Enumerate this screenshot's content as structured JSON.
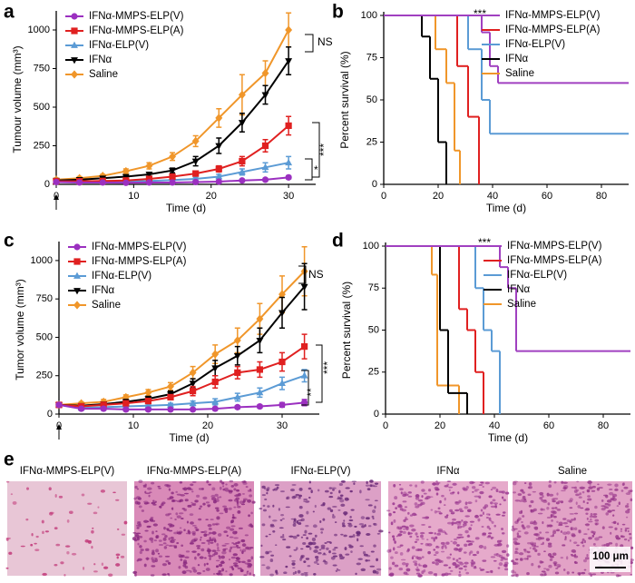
{
  "chart_data": [
    {
      "type": "line",
      "panel_label": "a",
      "x_label": "Time (d)",
      "y_label": "Tumour volume (mm³)",
      "xlim": [
        0,
        33.5
      ],
      "xticks": [
        0,
        10,
        20,
        30
      ],
      "ylim": [
        0,
        1100
      ],
      "yticks": [
        0,
        250,
        500,
        750,
        1000
      ],
      "x": [
        0,
        3,
        6,
        9,
        12,
        15,
        18,
        21,
        24,
        27,
        30
      ],
      "series": [
        {
          "name": "IFNα-MMPS-ELP(V)",
          "color": "#9b30c0",
          "marker": "circle",
          "values": [
            15,
            12,
            12,
            10,
            12,
            12,
            15,
            18,
            25,
            30,
            45
          ],
          "errors": [
            5,
            5,
            5,
            5,
            5,
            5,
            5,
            5,
            8,
            8,
            10
          ]
        },
        {
          "name": "IFNα-MMPS-ELP(A)",
          "color": "#e02020",
          "marker": "square",
          "values": [
            20,
            20,
            22,
            25,
            35,
            50,
            70,
            100,
            150,
            250,
            380
          ],
          "errors": [
            5,
            5,
            5,
            5,
            8,
            10,
            15,
            20,
            30,
            40,
            60
          ]
        },
        {
          "name": "IFNα-ELP(V)",
          "color": "#5b9bd5",
          "marker": "triangle",
          "values": [
            20,
            18,
            18,
            20,
            22,
            28,
            35,
            50,
            80,
            110,
            140
          ],
          "errors": [
            5,
            5,
            5,
            5,
            5,
            8,
            10,
            15,
            20,
            30,
            40
          ]
        },
        {
          "name": "IFNα",
          "color": "#000000",
          "marker": "triangle-down",
          "values": [
            25,
            30,
            40,
            50,
            65,
            90,
            150,
            250,
            400,
            580,
            800
          ],
          "errors": [
            5,
            5,
            8,
            10,
            12,
            15,
            30,
            50,
            60,
            60,
            90
          ]
        },
        {
          "name": "Saline",
          "color": "#f0962a",
          "marker": "diamond",
          "values": [
            30,
            40,
            55,
            85,
            120,
            180,
            280,
            430,
            580,
            720,
            1000
          ],
          "errors": [
            10,
            10,
            10,
            15,
            20,
            25,
            35,
            60,
            130,
            80,
            110
          ]
        }
      ],
      "annotations": [
        "NS",
        "***",
        "*"
      ]
    },
    {
      "type": "survival",
      "panel_label": "b",
      "x_label": "Time (d)",
      "y_label": "Percent survival (%)",
      "xlim": [
        0,
        90
      ],
      "xticks": [
        0,
        20,
        40,
        60,
        80
      ],
      "ylim": [
        0,
        100
      ],
      "yticks": [
        0,
        25,
        50,
        75,
        100
      ],
      "series": [
        {
          "name": "IFNα-MMPS-ELP(V)",
          "color": "#a040c0",
          "x": [
            0,
            36,
            39,
            42
          ],
          "values": [
            100,
            90,
            70,
            60
          ]
        },
        {
          "name": "IFNα-MMPS-ELP(A)",
          "color": "#e02020",
          "x": [
            0,
            27,
            31,
            35
          ],
          "values": [
            100,
            70,
            40,
            0
          ]
        },
        {
          "name": "IFNα-ELP(V)",
          "color": "#5b9bd5",
          "x": [
            0,
            31,
            36,
            39
          ],
          "values": [
            100,
            80,
            50,
            30
          ]
        },
        {
          "name": "IFNα",
          "color": "#000000",
          "x": [
            0,
            14,
            17,
            20,
            23
          ],
          "values": [
            100,
            87.5,
            62.5,
            25,
            0
          ]
        },
        {
          "name": "Saline",
          "color": "#f0962a",
          "x": [
            0,
            19,
            23,
            26,
            28
          ],
          "values": [
            100,
            80,
            60,
            20,
            0
          ]
        }
      ],
      "annotations": [
        "***"
      ]
    },
    {
      "type": "line",
      "panel_label": "c",
      "x_label": "Time (d)",
      "y_label": "Tumor volume (mm³)",
      "xlim": [
        0,
        35
      ],
      "xticks": [
        0,
        10,
        20,
        30
      ],
      "ylim": [
        0,
        1100
      ],
      "yticks": [
        0,
        250,
        500,
        750,
        1000
      ],
      "x": [
        0,
        3,
        6,
        9,
        12,
        15,
        18,
        21,
        24,
        27,
        30,
        33
      ],
      "series": [
        {
          "name": "IFNα-MMPS-ELP(V)",
          "color": "#9b30c0",
          "marker": "circle",
          "values": [
            60,
            35,
            35,
            30,
            30,
            30,
            30,
            35,
            45,
            50,
            60,
            75
          ],
          "errors": [
            10,
            10,
            10,
            10,
            5,
            5,
            5,
            10,
            10,
            10,
            15,
            20
          ]
        },
        {
          "name": "IFNα-MMPS-ELP(A)",
          "color": "#e02020",
          "marker": "square",
          "values": [
            60,
            50,
            60,
            70,
            85,
            110,
            150,
            210,
            270,
            290,
            340,
            440
          ],
          "errors": [
            10,
            10,
            10,
            10,
            15,
            15,
            30,
            40,
            40,
            50,
            60,
            80
          ]
        },
        {
          "name": "IFNα-ELP(V)",
          "color": "#5b9bd5",
          "marker": "triangle",
          "values": [
            60,
            40,
            45,
            50,
            55,
            60,
            70,
            80,
            110,
            140,
            200,
            250
          ],
          "errors": [
            10,
            10,
            10,
            10,
            10,
            10,
            15,
            20,
            25,
            30,
            40,
            40
          ]
        },
        {
          "name": "IFNα",
          "color": "#000000",
          "marker": "triangle-down",
          "values": [
            60,
            55,
            65,
            80,
            100,
            130,
            200,
            300,
            380,
            480,
            660,
            830
          ],
          "errors": [
            10,
            10,
            10,
            15,
            15,
            20,
            30,
            50,
            60,
            80,
            100,
            150
          ]
        },
        {
          "name": "Saline",
          "color": "#f0962a",
          "marker": "diamond",
          "values": [
            60,
            70,
            80,
            110,
            140,
            180,
            270,
            390,
            480,
            620,
            780,
            930
          ],
          "errors": [
            10,
            10,
            15,
            15,
            20,
            25,
            40,
            60,
            80,
            100,
            120,
            160
          ]
        }
      ],
      "annotations": [
        "NS",
        "***",
        "**"
      ]
    },
    {
      "type": "survival",
      "panel_label": "d",
      "x_label": "Time (d)",
      "y_label": "Percent survival (%)",
      "xlim": [
        0,
        90
      ],
      "xticks": [
        0,
        20,
        40,
        60,
        80
      ],
      "ylim": [
        0,
        100
      ],
      "yticks": [
        0,
        25,
        50,
        75,
        100
      ],
      "series": [
        {
          "name": "IFNα-MMPS-ELP(V)",
          "color": "#a040c0",
          "x": [
            0,
            42,
            45,
            48
          ],
          "values": [
            100,
            87.5,
            75,
            37.5
          ]
        },
        {
          "name": "IFNα-MMPS-ELP(A)",
          "color": "#e02020",
          "x": [
            0,
            27,
            30,
            33,
            36
          ],
          "values": [
            100,
            62.5,
            50,
            25,
            0
          ]
        },
        {
          "name": "IFNα-ELP(V)",
          "color": "#5b9bd5",
          "x": [
            0,
            33,
            36,
            39,
            42
          ],
          "values": [
            100,
            75,
            50,
            37.5,
            0
          ]
        },
        {
          "name": "IFNα",
          "color": "#000000",
          "x": [
            0,
            20,
            23,
            30
          ],
          "values": [
            100,
            50,
            12.5,
            0
          ]
        },
        {
          "name": "Saline",
          "color": "#f0962a",
          "x": [
            0,
            17,
            19,
            27
          ],
          "values": [
            100,
            83,
            17,
            0
          ]
        }
      ],
      "annotations": [
        "***"
      ]
    }
  ],
  "panel_e": {
    "panel_label": "e",
    "images": [
      "IFNα-MMPS-ELP(V)",
      "IFNα-MMPS-ELP(A)",
      "IFNα-ELP(V)",
      "IFNα",
      "Saline"
    ],
    "scale_bar": "100 μm"
  }
}
